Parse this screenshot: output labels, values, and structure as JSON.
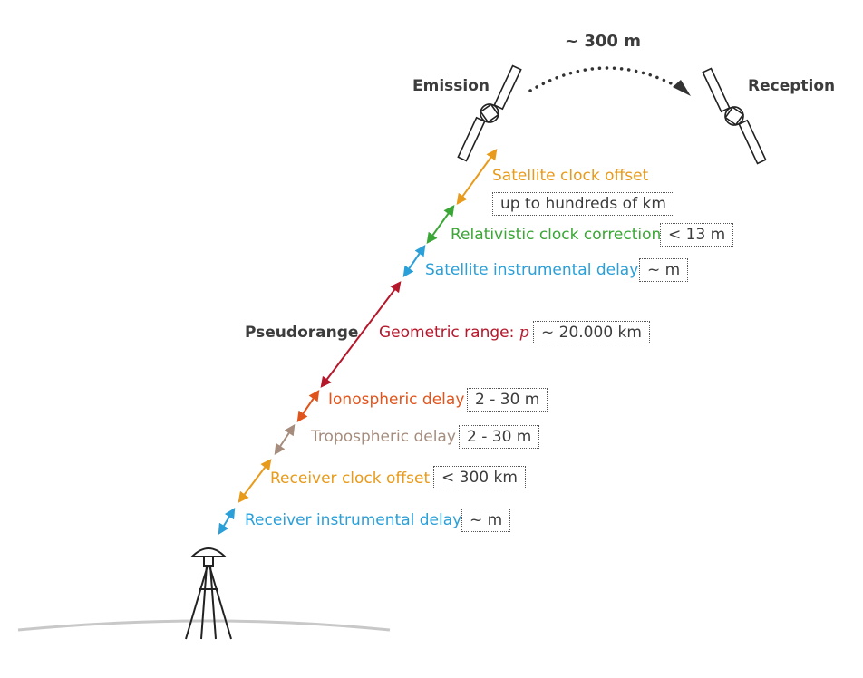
{
  "title_distance": "~ 300 m",
  "emission_label": "Emission",
  "reception_label": "Reception",
  "pseudorange_label": "Pseudorange",
  "segments": [
    {
      "id": "satellite-clock-offset",
      "label": "Satellite clock offset",
      "value": "up to hundreds of km",
      "color": "#e89a1a"
    },
    {
      "id": "relativistic-clock-correction",
      "label": "Relativistic clock correction",
      "value": "< 13 m",
      "color": "#3aa635"
    },
    {
      "id": "satellite-instrumental-delay",
      "label": "Satellite instrumental delay",
      "value": "~ m",
      "color": "#2a9fd8"
    },
    {
      "id": "geometric-range",
      "label": "Geometric range:",
      "symbol": "p",
      "value": "~ 20.000 km",
      "color": "#b5172b"
    },
    {
      "id": "ionospheric-delay",
      "label": "Ionospheric delay",
      "value": "2 - 30 m",
      "color": "#e0541c"
    },
    {
      "id": "tropospheric-delay",
      "label": "Tropospheric delay",
      "value": "2 - 30 m",
      "color": "#a58c7d"
    },
    {
      "id": "receiver-clock-offset",
      "label": "Receiver clock offset",
      "value": "< 300 km",
      "color": "#e89a1a"
    },
    {
      "id": "receiver-instrumental-delay",
      "label": "Receiver instrumental delay",
      "value": "~ m",
      "color": "#2a9fd8"
    }
  ]
}
